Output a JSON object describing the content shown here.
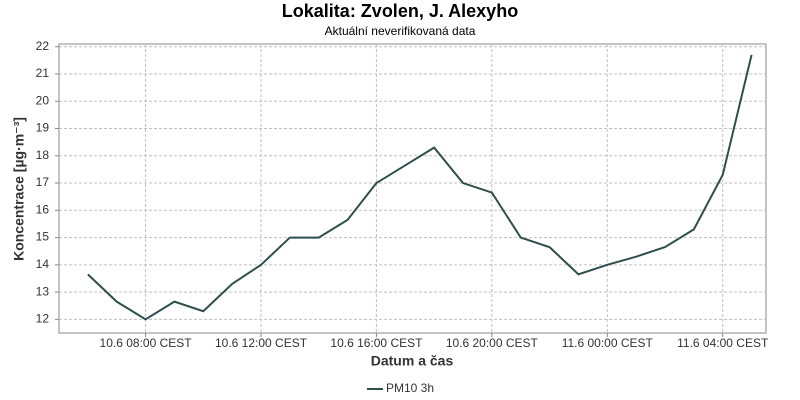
{
  "chart_data": {
    "type": "line",
    "title": "Lokalita: Zvolen, J. Alexyho",
    "subtitle": "Aktuální neverifikovaná data",
    "x_label": "Datum a čas",
    "y_label": "Koncentrace [µg·m⁻³]",
    "x": [
      "10.6 06:00",
      "10.6 07:00",
      "10.6 08:00",
      "10.6 09:00",
      "10.6 10:00",
      "10.6 11:00",
      "10.6 12:00",
      "10.6 13:00",
      "10.6 14:00",
      "10.6 15:00",
      "10.6 16:00",
      "10.6 17:00",
      "10.6 18:00",
      "10.6 19:00",
      "10.6 20:00",
      "10.6 21:00",
      "10.6 22:00",
      "10.6 23:00",
      "11.6 00:00",
      "11.6 01:00",
      "11.6 02:00",
      "11.6 03:00",
      "11.6 04:00",
      "11.6 05:00"
    ],
    "series": [
      {
        "name": "PM10 3h",
        "color": "#2f4f4f",
        "values": [
          13.65,
          12.65,
          12.0,
          12.65,
          12.3,
          13.3,
          14.0,
          15.0,
          15.0,
          15.65,
          17.0,
          17.65,
          18.3,
          17.0,
          16.65,
          15.0,
          14.65,
          13.65,
          14.0,
          14.3,
          14.65,
          15.3,
          17.3,
          21.7
        ]
      }
    ],
    "xlim": [
      "10.6 05:00",
      "11.6 05:30"
    ],
    "xticks": [
      {
        "value": "10.6 08:00",
        "label": "10.6 08:00 CEST"
      },
      {
        "value": "10.6 12:00",
        "label": "10.6 12:00 CEST"
      },
      {
        "value": "10.6 16:00",
        "label": "10.6 16:00 CEST"
      },
      {
        "value": "10.6 20:00",
        "label": "10.6 20:00 CEST"
      },
      {
        "value": "11.6 00:00",
        "label": "11.6 00:00 CEST"
      },
      {
        "value": "11.6 04:00",
        "label": "11.6 04:00 CEST"
      }
    ],
    "ylim": [
      11.5,
      22.1
    ],
    "yticks": [
      12,
      13,
      14,
      15,
      16,
      17,
      18,
      19,
      20,
      21,
      22
    ],
    "grid": true
  }
}
